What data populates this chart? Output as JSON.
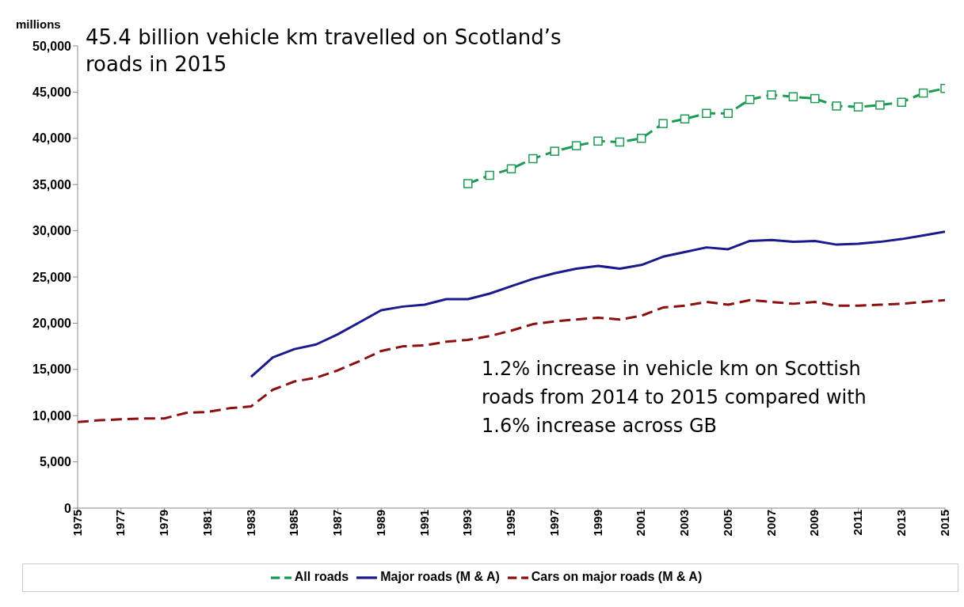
{
  "chart_data": {
    "type": "line",
    "title": "45.4 billion vehicle km travelled on Scotland’s roads in 2015",
    "ylabel": "millions",
    "annotations": [
      "1.2% increase in vehicle km on Scottish roads from 2014 to 2015 compared with 1.6% increase across GB"
    ],
    "x": [
      1975,
      1976,
      1977,
      1978,
      1979,
      1980,
      1981,
      1982,
      1983,
      1984,
      1985,
      1986,
      1987,
      1988,
      1989,
      1990,
      1991,
      1992,
      1993,
      1994,
      1995,
      1996,
      1997,
      1998,
      1999,
      2000,
      2001,
      2002,
      2003,
      2004,
      2005,
      2006,
      2007,
      2008,
      2009,
      2010,
      2011,
      2012,
      2013,
      2014,
      2015
    ],
    "series": [
      {
        "name": "All roads",
        "color": "#1f9a55",
        "line_style": "dashed",
        "marker": "square",
        "values": [
          null,
          null,
          null,
          null,
          null,
          null,
          null,
          null,
          null,
          null,
          null,
          null,
          null,
          null,
          null,
          null,
          null,
          null,
          35100,
          36000,
          36700,
          37800,
          38600,
          39200,
          39700,
          39600,
          40000,
          41600,
          42100,
          42700,
          42700,
          44200,
          44700,
          44500,
          44300,
          43500,
          43400,
          43600,
          43900,
          44900,
          45400
        ]
      },
      {
        "name": "Major roads (M & A)",
        "color": "#1a1a8c",
        "line_style": "solid",
        "marker": "none",
        "values": [
          null,
          null,
          null,
          null,
          null,
          null,
          null,
          null,
          14200,
          16300,
          17200,
          17700,
          18800,
          20100,
          21400,
          21800,
          22000,
          22600,
          22600,
          23200,
          24000,
          24800,
          25400,
          25900,
          26200,
          25900,
          26300,
          27200,
          27700,
          28200,
          28000,
          28900,
          29000,
          28800,
          28900,
          28500,
          28600,
          28800,
          29100,
          29500,
          29900
        ]
      },
      {
        "name": "Cars on major roads (M & A)",
        "color": "#8b1010",
        "line_style": "dashed",
        "marker": "none",
        "values": [
          9300,
          9500,
          9600,
          9700,
          9700,
          10300,
          10400,
          10800,
          11000,
          12800,
          13700,
          14100,
          14900,
          15900,
          17000,
          17500,
          17600,
          18000,
          18200,
          18600,
          19200,
          19900,
          20200,
          20400,
          20600,
          20400,
          20800,
          21700,
          21900,
          22300,
          22000,
          22500,
          22300,
          22100,
          22300,
          21900,
          21900,
          22000,
          22100,
          22300,
          22500
        ]
      }
    ],
    "xlim": [
      1975,
      2015
    ],
    "xticks": [
      1975,
      1977,
      1979,
      1981,
      1983,
      1985,
      1987,
      1989,
      1991,
      1993,
      1995,
      1997,
      1999,
      2001,
      2003,
      2005,
      2007,
      2009,
      2011,
      2013,
      2015
    ],
    "ylim": [
      0,
      50000
    ],
    "yticks": [
      0,
      {
        "value": 5000,
        "label": "5,000"
      },
      {
        "value": 10000,
        "label": "10,000"
      },
      {
        "value": 15000,
        "label": "15,000"
      },
      {
        "value": 20000,
        "label": "20,000"
      },
      {
        "value": 25000,
        "label": "25,000"
      },
      {
        "value": 30000,
        "label": "30,000"
      },
      {
        "value": 35000,
        "label": "35,000"
      },
      {
        "value": 40000,
        "label": "40,000"
      },
      {
        "value": 45000,
        "label": "45,000"
      },
      {
        "value": 50000,
        "label": "50,000"
      }
    ],
    "grid": false,
    "legend": "bottom"
  }
}
